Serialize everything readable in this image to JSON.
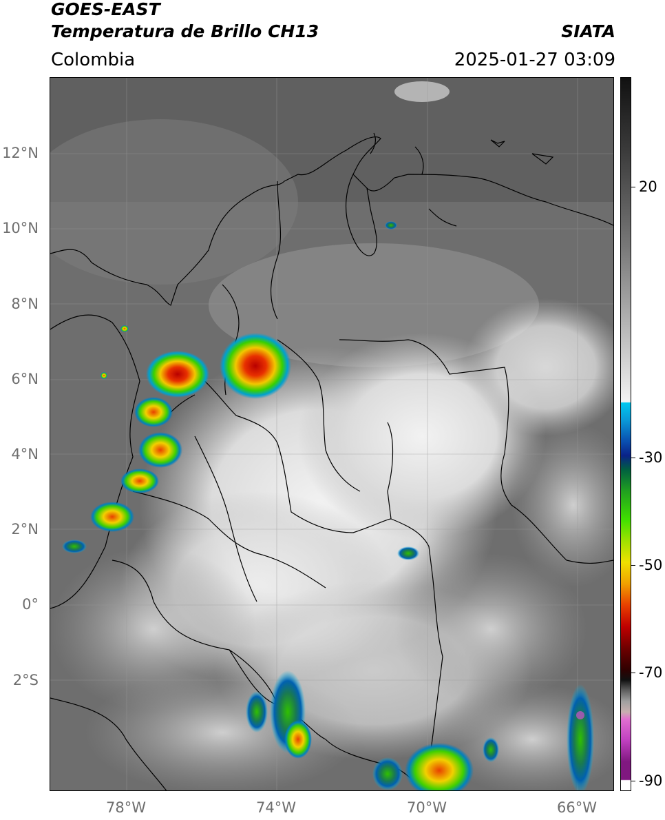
{
  "header": {
    "satellite": "GOES-EAST",
    "product": "Temperatura de Brillo CH13",
    "region": "Colombia",
    "agency": "SIATA",
    "timestamp": "2025-01-27 03:09"
  },
  "axes": {
    "lat_labels": [
      "12°N",
      "10°N",
      "8°N",
      "6°N",
      "4°N",
      "2°N",
      "0°",
      "2°S"
    ],
    "lon_labels": [
      "78°W",
      "74°W",
      "70°W",
      "66°W"
    ]
  },
  "colorbar": {
    "labels": [
      "20",
      "-30",
      "-50",
      "-70",
      "-90"
    ]
  },
  "colors": {
    "background_gray": "#6a6a6a",
    "cold_red": "#d40000",
    "cold_yellow": "#f2e600",
    "cold_green": "#2fd200",
    "cold_cyan": "#00b8e6",
    "cold_blue": "#0a2a9a",
    "coldest_magenta": "#d050d0"
  }
}
